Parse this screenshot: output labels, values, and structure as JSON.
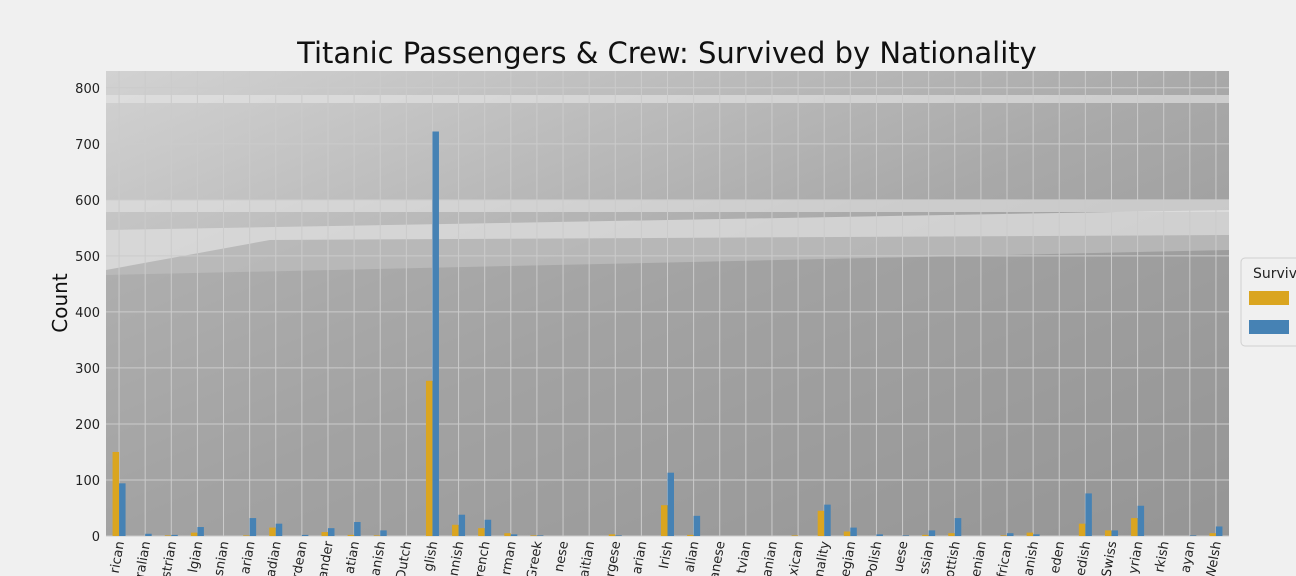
{
  "chart_data": {
    "type": "bar",
    "title": "Titanic Passengers & Crew: Survived by Nationality",
    "xlabel": "",
    "ylabel": "Count",
    "ylim": [
      0,
      830
    ],
    "yticks": [
      0,
      100,
      200,
      300,
      400,
      500,
      600,
      700,
      800
    ],
    "grid": true,
    "legend": {
      "title": "Surviv",
      "placement": "right"
    },
    "colors": [
      "#daa520",
      "#4682b4"
    ],
    "categories": [
      "rican",
      "ralian",
      "strian",
      "lgian",
      "snian",
      "arian",
      "adian",
      "rdean",
      "ander",
      "atian",
      "anish",
      "Dutch",
      "glish",
      "nnish",
      "rench",
      "rman",
      "Greek",
      "nese",
      "aitian",
      "rgese",
      "arian",
      "Irish",
      "alian",
      "anese",
      "tvian",
      "anian",
      "xican",
      "nality",
      "egian",
      "Polish",
      "uese",
      "ssian",
      "ottish",
      "enian",
      "frican",
      "anish",
      "eden",
      "edish",
      "Swiss",
      "yrian",
      "rkish",
      "ayan",
      "Welsh"
    ],
    "series": [
      {
        "name": "",
        "values": [
          150,
          0,
          1,
          6,
          0,
          1,
          15,
          0,
          7,
          2,
          1,
          0,
          277,
          20,
          14,
          5,
          1,
          0,
          0,
          3,
          0,
          55,
          2,
          0,
          0,
          0,
          1,
          45,
          8,
          0,
          0,
          2,
          5,
          0,
          1,
          6,
          0,
          22,
          10,
          32,
          0,
          0,
          5
        ]
      },
      {
        "name": "",
        "values": [
          94,
          4,
          2,
          16,
          0,
          32,
          22,
          2,
          14,
          25,
          10,
          0,
          722,
          38,
          29,
          3,
          1,
          0,
          0,
          1,
          0,
          113,
          36,
          0,
          0,
          0,
          0,
          56,
          15,
          3,
          1,
          10,
          32,
          0,
          5,
          3,
          0,
          76,
          10,
          54,
          0,
          1,
          17
        ]
      }
    ]
  }
}
